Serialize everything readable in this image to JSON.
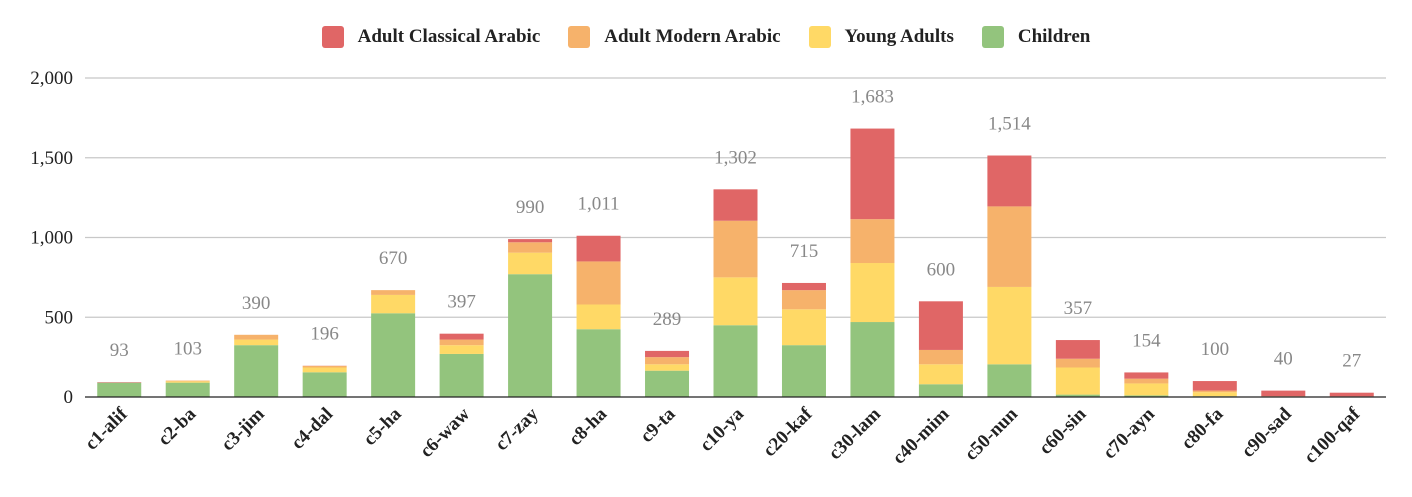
{
  "chart_data": {
    "type": "bar",
    "stacked": true,
    "title": "",
    "xlabel": "",
    "ylabel": "",
    "ylim": [
      0,
      2000
    ],
    "yticks": [
      0,
      500,
      1000,
      1500,
      2000
    ],
    "ytick_labels": [
      "0",
      "500",
      "1,000",
      "1,500",
      "2,000"
    ],
    "grid": true,
    "legend_position": "top-center",
    "categories": [
      "c1-alif",
      "c2-ba",
      "c3-jim",
      "c4-dal",
      "c5-ha",
      "c6-waw",
      "c7-zay",
      "c8-ha",
      "c9-ta",
      "c10-ya",
      "c20-kaf",
      "c30-lam",
      "c40-mim",
      "c50-nun",
      "c60-sin",
      "c70-ayn",
      "c80-fa",
      "c90-sad",
      "c100-qaf"
    ],
    "series": [
      {
        "name": "Children",
        "color": "#93c47d",
        "values": [
          90,
          90,
          325,
          155,
          525,
          270,
          770,
          425,
          165,
          450,
          325,
          470,
          80,
          205,
          15,
          10,
          5,
          0,
          0
        ]
      },
      {
        "name": "Young Adults",
        "color": "#ffd966",
        "values": [
          0,
          8,
          35,
          30,
          115,
          55,
          135,
          155,
          40,
          300,
          225,
          370,
          125,
          485,
          170,
          75,
          25,
          3,
          2
        ]
      },
      {
        "name": "Adult Modern Arabic",
        "color": "#f6b26b",
        "values": [
          0,
          5,
          30,
          10,
          30,
          35,
          65,
          270,
          45,
          355,
          120,
          275,
          90,
          505,
          55,
          30,
          10,
          2,
          2
        ]
      },
      {
        "name": "Adult Classical Arabic",
        "color": "#e06666",
        "values": [
          3,
          0,
          0,
          1,
          0,
          37,
          20,
          161,
          39,
          197,
          45,
          568,
          305,
          319,
          117,
          39,
          60,
          35,
          23
        ]
      }
    ],
    "totals": [
      93,
      103,
      390,
      196,
      670,
      397,
      990,
      1011,
      289,
      1302,
      715,
      1683,
      600,
      1514,
      357,
      154,
      100,
      40,
      27
    ],
    "total_labels": [
      "93",
      "103",
      "390",
      "196",
      "670",
      "397",
      "990",
      "1,011",
      "289",
      "1,302",
      "715",
      "1,683",
      "600",
      "1,514",
      "357",
      "154",
      "100",
      "40",
      "27"
    ],
    "legend": [
      "Adult Classical Arabic",
      "Adult Modern Arabic",
      "Young Adults",
      "Children"
    ]
  }
}
